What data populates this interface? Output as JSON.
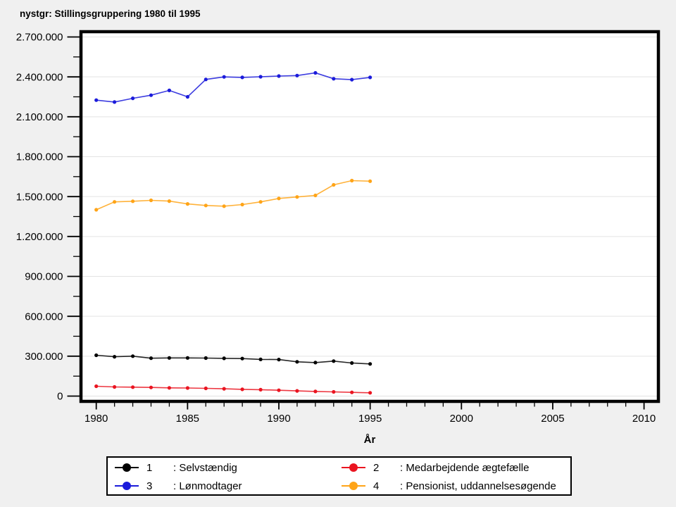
{
  "chart_data": {
    "type": "line",
    "title": "nystgr: Stillingsgruppering 1980 til 1995",
    "xlabel": "År",
    "ylabel": "",
    "x": [
      1980,
      1981,
      1982,
      1983,
      1984,
      1985,
      1986,
      1987,
      1988,
      1989,
      1990,
      1991,
      1992,
      1993,
      1994,
      1995
    ],
    "series": [
      {
        "key": "1",
        "name": "Selvstændig",
        "label": ": Selvstændig",
        "color": "#000000",
        "values": [
          307000,
          296000,
          300000,
          285000,
          287000,
          287000,
          286000,
          284000,
          282000,
          276000,
          275000,
          258000,
          252000,
          263000,
          249000,
          242000
        ]
      },
      {
        "key": "2",
        "name": "Medarbejdende ægtefælle",
        "label": ": Medarbejdende ægtefælle",
        "color": "#ea1420",
        "values": [
          74000,
          69000,
          67000,
          65000,
          62000,
          61000,
          58000,
          55000,
          51000,
          48000,
          44000,
          39000,
          35000,
          32000,
          28000,
          25000
        ]
      },
      {
        "key": "3",
        "name": "Lønmodtager",
        "label": ": Lønmodtager",
        "color": "#1b1bdb",
        "values": [
          2225000,
          2211000,
          2239000,
          2262000,
          2298000,
          2250000,
          2381000,
          2400000,
          2396000,
          2401000,
          2406000,
          2410000,
          2430000,
          2386000,
          2379000,
          2396000
        ]
      },
      {
        "key": "4",
        "name": "Pensionist, uddannelsesøgende",
        "label": ": Pensionist, uddannelsesøgende",
        "color": "#ffa417",
        "values": [
          1401000,
          1460000,
          1465000,
          1472000,
          1466000,
          1445000,
          1433000,
          1428000,
          1440000,
          1460000,
          1486000,
          1497000,
          1509000,
          1588000,
          1620000,
          1616000
        ]
      }
    ],
    "xlim": [
      1979.1,
      2010.8
    ],
    "ylim": [
      0,
      2700000
    ],
    "xticks": [
      1980,
      1985,
      1990,
      1995,
      2000,
      2005,
      2010
    ],
    "xtick_labels": [
      "1980",
      "1985",
      "1990",
      "1995",
      "2000",
      "2005",
      "2010"
    ],
    "minor_x_step": 1,
    "yticks": [
      0,
      300000,
      600000,
      900000,
      1200000,
      1500000,
      1800000,
      2100000,
      2400000,
      2700000
    ],
    "ytick_labels": [
      "0",
      "300.000",
      "600.000",
      "900.000",
      "1.200.000",
      "1.500.000",
      "1.800.000",
      "2.100.000",
      "2.400.000",
      "2.700.000"
    ],
    "minor_y_step": 150000,
    "grid": "horizontal-major",
    "legend_position": "bottom",
    "plot_background": "#ffffff",
    "page_background": "#f0f0f0",
    "gridline_color": "#e3e3e3"
  }
}
